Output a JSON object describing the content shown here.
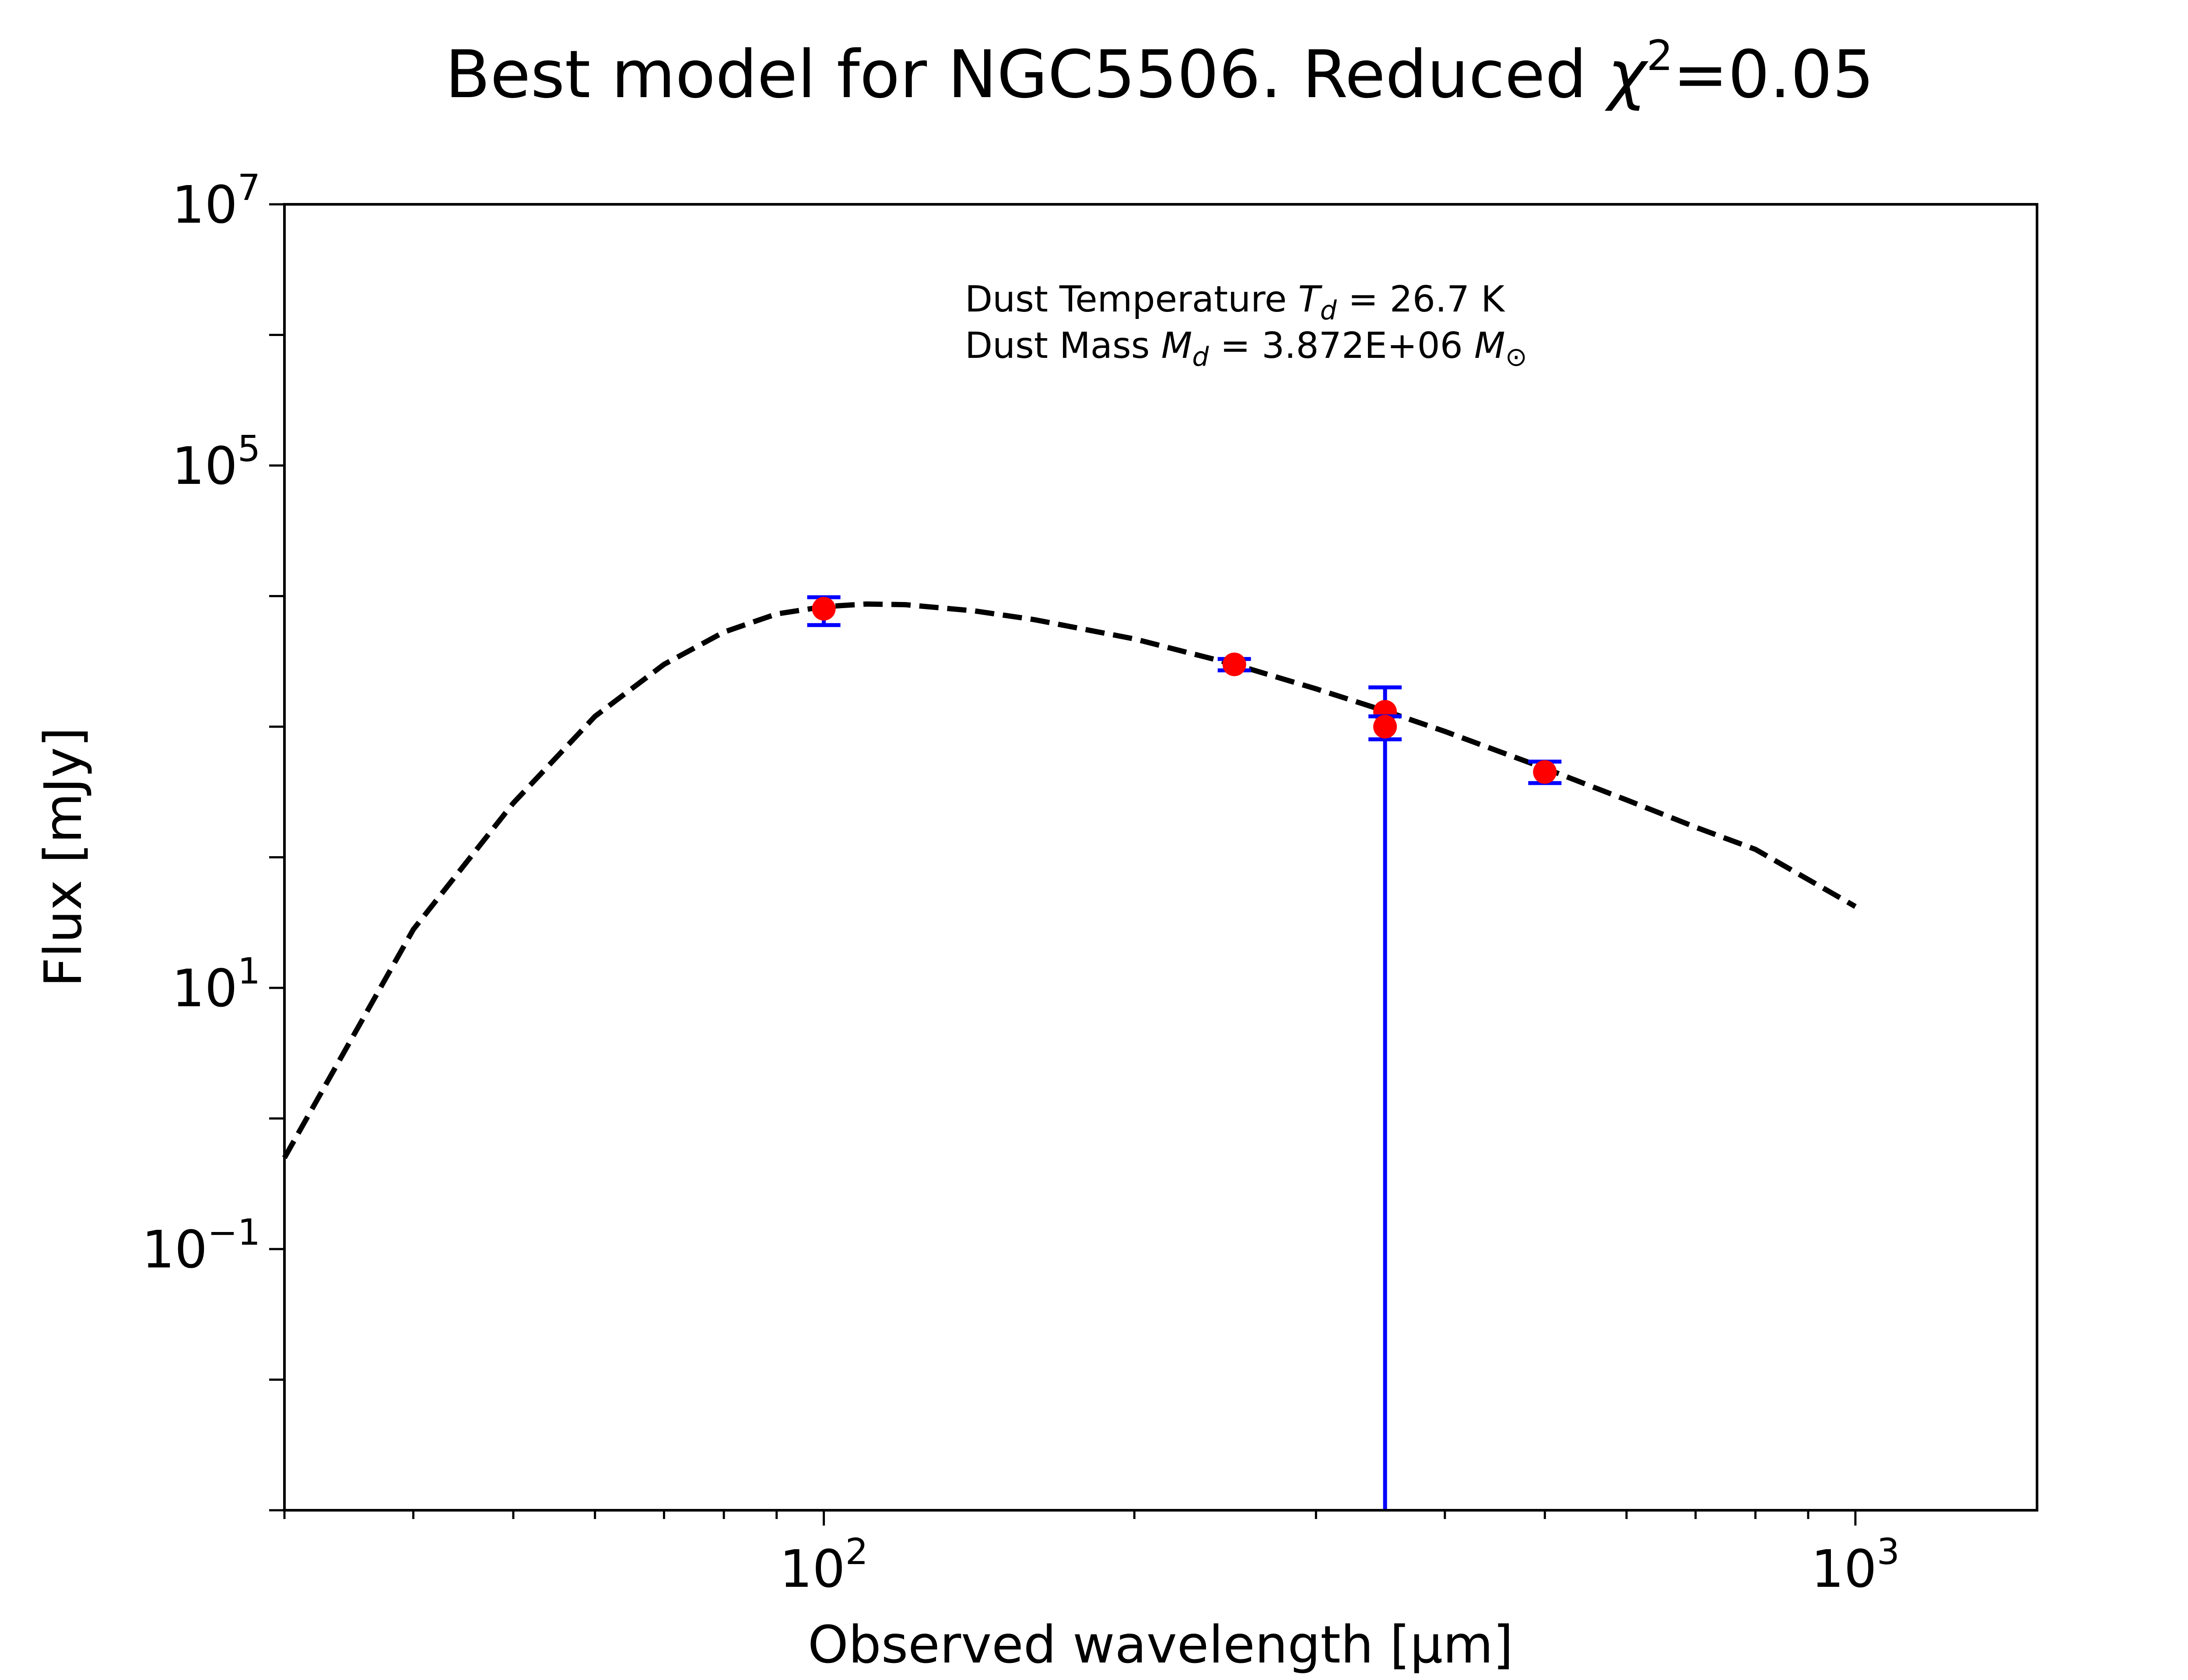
{
  "chart_data": {
    "type": "scatter",
    "title": "Best model for NGC5506. Reduced χ²=0.05",
    "title_parts": {
      "main": "Best model for NGC5506. Reduced ",
      "chi": "χ",
      "sup": "2",
      "tail": "=0.05"
    },
    "xlabel": "Observed wavelength [μm]",
    "ylabel": "Flux [mJy]",
    "x_scale": "log",
    "y_scale": "log",
    "xlim": [
      30,
      1500
    ],
    "ylim": [
      0.001,
      10000000
    ],
    "grid": false,
    "x_ticks": [
      {
        "value": 100,
        "base": "10",
        "exp": "2"
      },
      {
        "value": 1000,
        "base": "10",
        "exp": "3"
      }
    ],
    "y_ticks": [
      {
        "value": 0.1,
        "base": "10",
        "exp": "−1"
      },
      {
        "value": 10,
        "base": "10",
        "exp": "1"
      },
      {
        "value": 100000,
        "base": "10",
        "exp": "5"
      },
      {
        "value": 10000000,
        "base": "10",
        "exp": "7"
      }
    ],
    "annotation": {
      "line1": {
        "prefix": "Dust Temperature ",
        "sym": "T",
        "sub": "d",
        "suffix": " = 26.7 K"
      },
      "line2": {
        "prefix": "Dust Mass ",
        "sym": "M",
        "sub": "d",
        "mid": " = 3.872E+06 ",
        "sym2": "M",
        "sub2": "⊙"
      }
    },
    "series": [
      {
        "type": "line",
        "style": "dashed",
        "color": "#000000",
        "x": [
          30,
          40,
          50,
          60,
          70,
          80,
          90,
          100,
          110,
          120,
          140,
          160,
          200,
          250,
          300,
          350,
          400,
          500,
          600,
          700,
          800,
          1000
        ],
        "y": [
          0.5,
          28,
          260,
          1200,
          3000,
          5300,
          7300,
          8300,
          8700,
          8600,
          7700,
          6600,
          4700,
          3000,
          1950,
          1320,
          920,
          480,
          275,
          170,
          115,
          42
        ]
      },
      {
        "type": "scatter",
        "marker_color": "#ff0000",
        "error_color": "#0000ff",
        "points": [
          {
            "x": 100,
            "y": 8000,
            "y_low": 6000,
            "y_high": 9800
          },
          {
            "x": 250,
            "y": 3000,
            "y_low": 2700,
            "y_high": 3300
          },
          {
            "x": 350,
            "y": 1300,
            "y_low": 0.001,
            "y_high": 2000
          },
          {
            "x": 350,
            "y": 1000,
            "y_low": 800,
            "y_high": 1200
          },
          {
            "x": 500,
            "y": 450,
            "y_low": 370,
            "y_high": 540
          }
        ]
      }
    ]
  }
}
